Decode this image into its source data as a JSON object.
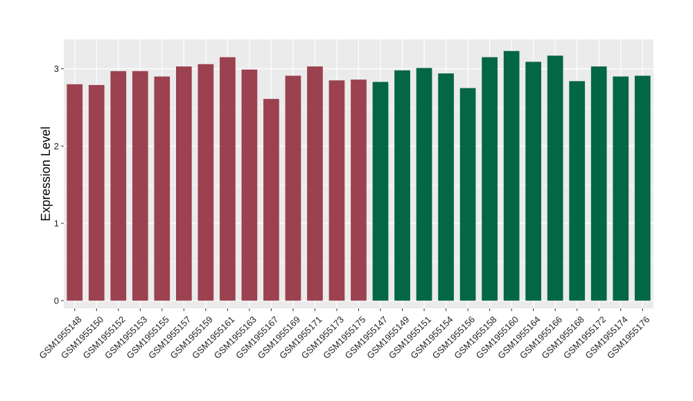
{
  "chart_data": {
    "type": "bar",
    "ylabel": "Expression Level",
    "xlabel": "",
    "ylim": [
      -0.1,
      3.38
    ],
    "yticks": [
      0,
      1,
      2,
      3
    ],
    "grid": true,
    "legend": "none",
    "colors": {
      "group1": "#9b4150",
      "group2": "#036644",
      "panel": "#ebebeb",
      "grid": "#ffffff"
    },
    "categories": [
      "GSM1955148",
      "GSM1955150",
      "GSM1955152",
      "GSM1955153",
      "GSM1955155",
      "GSM1955157",
      "GSM1955159",
      "GSM1955161",
      "GSM1955163",
      "GSM1955167",
      "GSM1955169",
      "GSM1955171",
      "GSM1955173",
      "GSM1955175",
      "GSM1955147",
      "GSM1955149",
      "GSM1955151",
      "GSM1955154",
      "GSM1955156",
      "GSM1955158",
      "GSM1955160",
      "GSM1955164",
      "GSM1955166",
      "GSM1955168",
      "GSM1955172",
      "GSM1955174",
      "GSM1955176"
    ],
    "values": [
      2.8,
      2.79,
      2.97,
      2.97,
      2.9,
      3.03,
      3.06,
      3.15,
      2.99,
      2.61,
      2.91,
      3.03,
      2.85,
      2.86,
      2.83,
      2.98,
      3.01,
      2.94,
      2.75,
      3.15,
      3.23,
      3.09,
      3.17,
      2.84,
      3.03,
      2.9,
      2.91
    ],
    "groups": [
      "group1",
      "group1",
      "group1",
      "group1",
      "group1",
      "group1",
      "group1",
      "group1",
      "group1",
      "group1",
      "group1",
      "group1",
      "group1",
      "group1",
      "group2",
      "group2",
      "group2",
      "group2",
      "group2",
      "group2",
      "group2",
      "group2",
      "group2",
      "group2",
      "group2",
      "group2",
      "group2"
    ]
  }
}
